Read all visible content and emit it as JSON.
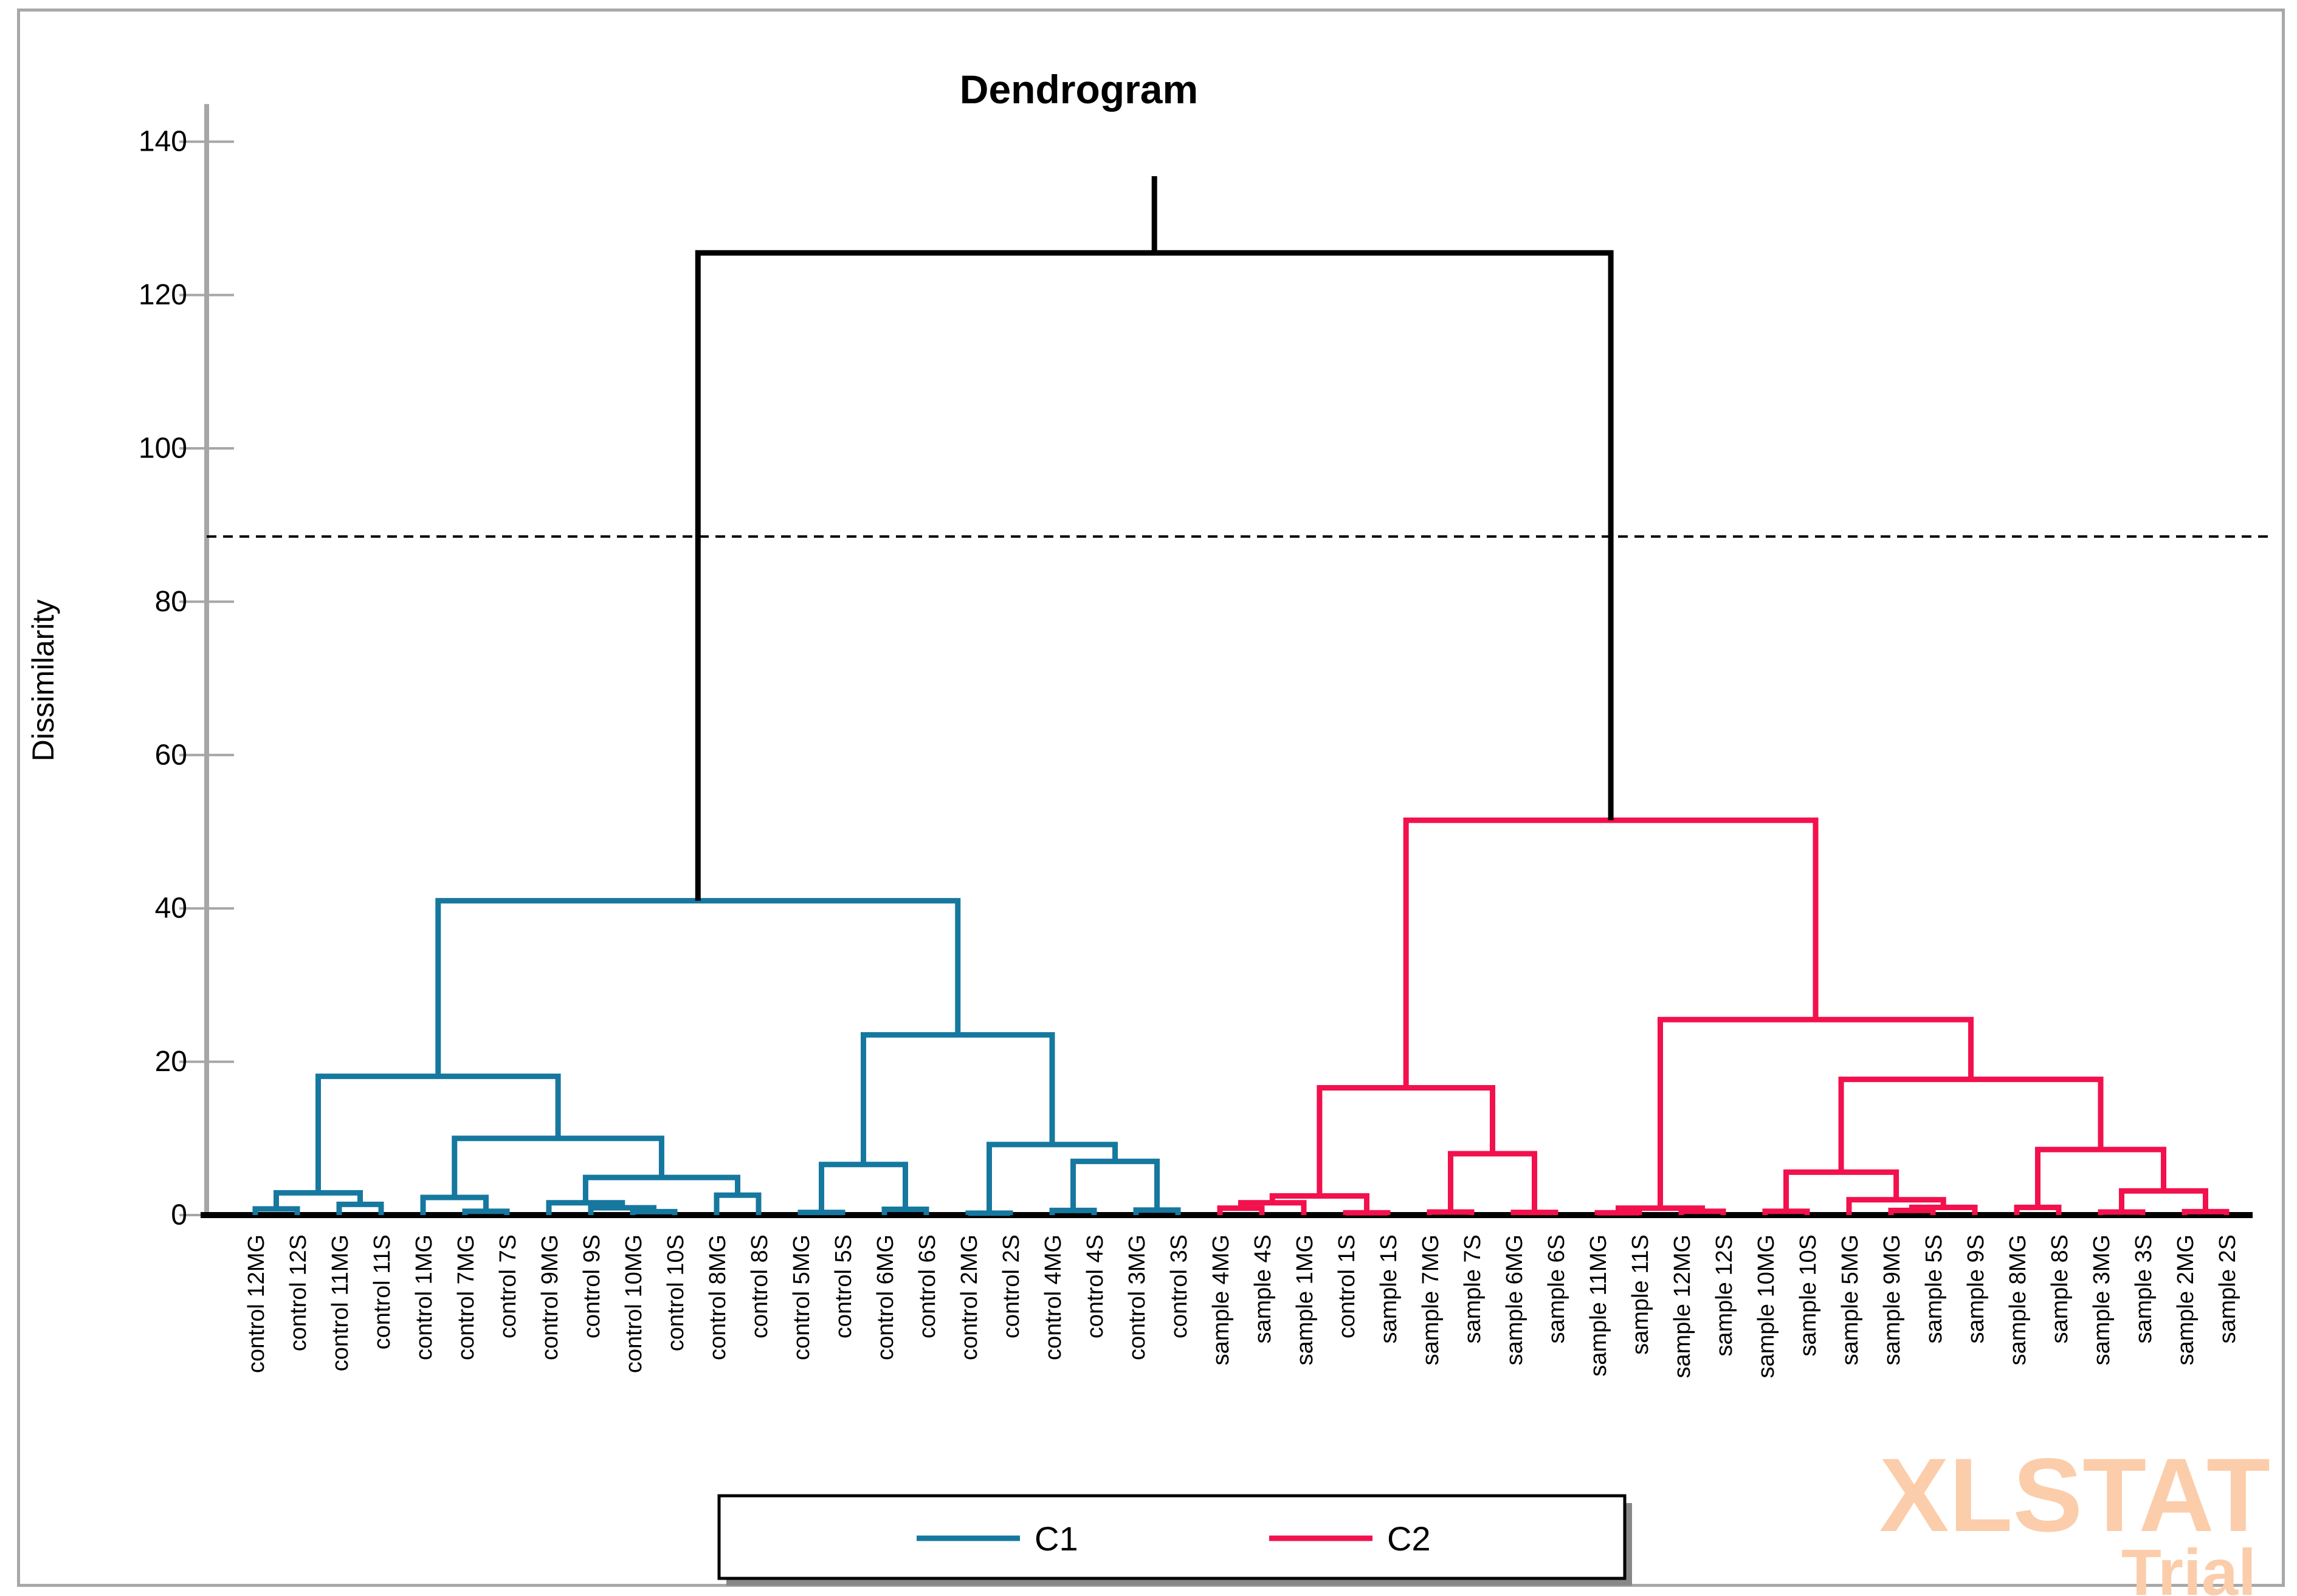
{
  "watermark": {
    "line1": "XLSTAT",
    "line2": "Trial",
    "color": "#FBCDAA"
  },
  "chart_data": {
    "type": "dendrogram",
    "title": "Dendrogram",
    "ylabel": "Dissimilarity",
    "ylim": [
      0,
      140
    ],
    "yticks": [
      0,
      20,
      40,
      60,
      80,
      100,
      120,
      140
    ],
    "grid": "off",
    "cut_line": 88.5,
    "trunk_top": 135.5,
    "colors": {
      "c1": "#16789F",
      "c2": "#F2104D",
      "root": "#000000",
      "axis": "#A6A6A6",
      "baseline": "#000000"
    },
    "legend": {
      "position": "bottom",
      "entries": [
        {
          "label": "C1",
          "color": "#16789F"
        },
        {
          "label": "C2",
          "color": "#F2104D"
        }
      ]
    },
    "leaves": [
      "control 12MG",
      "control 12S",
      "control 11MG",
      "control 11S",
      "control 1MG",
      "control 7MG",
      "control 7S",
      "control 9MG",
      "control 9S",
      "control 10MG",
      "control 10S",
      "control 8MG",
      "control 8S",
      "control 5MG",
      "control 5S",
      "control 6MG",
      "control 6S",
      "control 2MG",
      "control 2S",
      "control 4MG",
      "control 4S",
      "control 3MG",
      "control 3S",
      "sample 4MG",
      "sample 4S",
      "sample 1MG",
      "control 1S",
      "sample 1S",
      "sample 7MG",
      "sample 7S",
      "sample 6MG",
      "sample 6S",
      "sample 11MG",
      "sample 11S",
      "sample 12MG",
      "sample 12S",
      "sample 10MG",
      "sample 10S",
      "sample 5MG",
      "sample 9MG",
      "sample 5S",
      "sample 9S",
      "sample 8MG",
      "sample 8S",
      "sample 3MG",
      "sample 3S",
      "sample 2MG",
      "sample 2S"
    ],
    "merges": [
      {
        "id": "M1",
        "a": "L1",
        "b": "L2",
        "h": 0.8,
        "cluster": "c1"
      },
      {
        "id": "M2",
        "a": "L3",
        "b": "L4",
        "h": 1.4,
        "cluster": "c1"
      },
      {
        "id": "M3",
        "a": "M1",
        "b": "M2",
        "h": 2.9,
        "cluster": "c1"
      },
      {
        "id": "M4",
        "a": "L6",
        "b": "L7",
        "h": 0.5,
        "cluster": "c1"
      },
      {
        "id": "M5",
        "a": "L5",
        "b": "M4",
        "h": 2.3,
        "cluster": "c1"
      },
      {
        "id": "M6",
        "a": "L10",
        "b": "L11",
        "h": 0.45,
        "cluster": "c1"
      },
      {
        "id": "M7",
        "a": "L9",
        "b": "M6",
        "h": 0.95,
        "cluster": "c1"
      },
      {
        "id": "M8",
        "a": "L8",
        "b": "M7",
        "h": 1.6,
        "cluster": "c1"
      },
      {
        "id": "M9",
        "a": "L12",
        "b": "L13",
        "h": 2.6,
        "cluster": "c1"
      },
      {
        "id": "M10",
        "a": "M8",
        "b": "M9",
        "h": 4.9,
        "cluster": "c1"
      },
      {
        "id": "M11",
        "a": "M5",
        "b": "M10",
        "h": 10.0,
        "cluster": "c1"
      },
      {
        "id": "M12",
        "a": "M3",
        "b": "M11",
        "h": 18.1,
        "cluster": "c1"
      },
      {
        "id": "M13",
        "a": "L14",
        "b": "L15",
        "h": 0.35,
        "cluster": "c1"
      },
      {
        "id": "M14",
        "a": "L16",
        "b": "L17",
        "h": 0.75,
        "cluster": "c1"
      },
      {
        "id": "M15",
        "a": "M13",
        "b": "M14",
        "h": 6.6,
        "cluster": "c1"
      },
      {
        "id": "M16",
        "a": "L18",
        "b": "L19",
        "h": 0.25,
        "cluster": "c1"
      },
      {
        "id": "M17",
        "a": "L20",
        "b": "L21",
        "h": 0.6,
        "cluster": "c1"
      },
      {
        "id": "M18",
        "a": "L22",
        "b": "L23",
        "h": 0.65,
        "cluster": "c1"
      },
      {
        "id": "M19",
        "a": "M17",
        "b": "M18",
        "h": 7.0,
        "cluster": "c1"
      },
      {
        "id": "M20",
        "a": "M16",
        "b": "M19",
        "h": 9.2,
        "cluster": "c1"
      },
      {
        "id": "M21",
        "a": "M15",
        "b": "M20",
        "h": 23.5,
        "cluster": "c1"
      },
      {
        "id": "M22",
        "a": "M12",
        "b": "M21",
        "h": 41.0,
        "cluster": "c1"
      },
      {
        "id": "M23",
        "a": "L24",
        "b": "L25",
        "h": 0.9,
        "cluster": "c2"
      },
      {
        "id": "M24",
        "a": "M23",
        "b": "L26",
        "h": 1.6,
        "cluster": "c2"
      },
      {
        "id": "M25",
        "a": "L27",
        "b": "L28",
        "h": 0.3,
        "cluster": "c2"
      },
      {
        "id": "M26",
        "a": "M24",
        "b": "M25",
        "h": 2.5,
        "cluster": "c2"
      },
      {
        "id": "M27",
        "a": "L29",
        "b": "L30",
        "h": 0.4,
        "cluster": "c2"
      },
      {
        "id": "M28",
        "a": "L31",
        "b": "L32",
        "h": 0.35,
        "cluster": "c2"
      },
      {
        "id": "M29",
        "a": "M27",
        "b": "M28",
        "h": 8.0,
        "cluster": "c2"
      },
      {
        "id": "M30",
        "a": "M26",
        "b": "M29",
        "h": 16.6,
        "cluster": "c2"
      },
      {
        "id": "M31",
        "a": "L33",
        "b": "L34",
        "h": 0.3,
        "cluster": "c2"
      },
      {
        "id": "M32",
        "a": "L35",
        "b": "L36",
        "h": 0.5,
        "cluster": "c2"
      },
      {
        "id": "M33",
        "a": "M31",
        "b": "M32",
        "h": 0.9,
        "cluster": "c2"
      },
      {
        "id": "M34",
        "a": "L37",
        "b": "L38",
        "h": 0.5,
        "cluster": "c2"
      },
      {
        "id": "M35",
        "a": "L40",
        "b": "L41",
        "h": 0.6,
        "cluster": "c2"
      },
      {
        "id": "M36",
        "a": "M35",
        "b": "L42",
        "h": 1.0,
        "cluster": "c2"
      },
      {
        "id": "M37",
        "a": "L39",
        "b": "M36",
        "h": 2.0,
        "cluster": "c2"
      },
      {
        "id": "M38",
        "a": "M34",
        "b": "M37",
        "h": 5.6,
        "cluster": "c2"
      },
      {
        "id": "M39",
        "a": "L43",
        "b": "L44",
        "h": 1.0,
        "cluster": "c2"
      },
      {
        "id": "M40",
        "a": "L45",
        "b": "L46",
        "h": 0.4,
        "cluster": "c2"
      },
      {
        "id": "M41",
        "a": "L47",
        "b": "L48",
        "h": 0.45,
        "cluster": "c2"
      },
      {
        "id": "M42",
        "a": "M40",
        "b": "M41",
        "h": 3.15,
        "cluster": "c2"
      },
      {
        "id": "M43",
        "a": "M39",
        "b": "M42",
        "h": 8.55,
        "cluster": "c2"
      },
      {
        "id": "M44",
        "a": "M38",
        "b": "M43",
        "h": 17.7,
        "cluster": "c2"
      },
      {
        "id": "M45",
        "a": "M33",
        "b": "M44",
        "h": 25.5,
        "cluster": "c2"
      },
      {
        "id": "M46",
        "a": "M30",
        "b": "M45",
        "h": 51.5,
        "cluster": "c2"
      },
      {
        "id": "M47",
        "a": "M22",
        "b": "M46",
        "h": 125.5,
        "cluster": "root"
      }
    ]
  }
}
